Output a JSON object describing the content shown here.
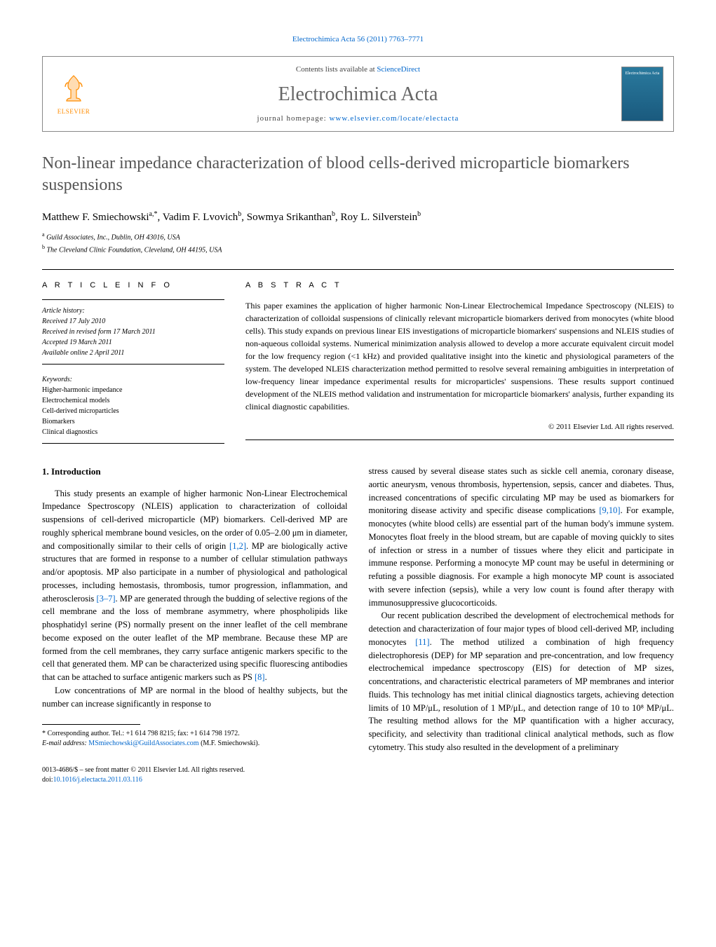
{
  "journal_ref": "Electrochimica Acta 56 (2011) 7763–7771",
  "header": {
    "contents_prefix": "Contents lists available at ",
    "contents_link": "ScienceDirect",
    "journal_name": "Electrochimica Acta",
    "homepage_prefix": "journal homepage: ",
    "homepage_url": "www.elsevier.com/locate/electacta",
    "publisher": "ELSEVIER",
    "cover_text": "Electrochimica Acta"
  },
  "title": "Non-linear impedance characterization of blood cells-derived microparticle biomarkers suspensions",
  "authors_html": "Matthew F. Smiechowski",
  "author_list": [
    {
      "name": "Matthew F. Smiechowski",
      "sup": "a,*"
    },
    {
      "name": "Vadim F. Lvovich",
      "sup": "b"
    },
    {
      "name": "Sowmya Srikanthan",
      "sup": "b"
    },
    {
      "name": "Roy L. Silverstein",
      "sup": "b"
    }
  ],
  "affiliations": [
    {
      "sup": "a",
      "text": "Guild Associates, Inc., Dublin, OH 43016, USA"
    },
    {
      "sup": "b",
      "text": "The Cleveland Clinic Foundation, Cleveland, OH 44195, USA"
    }
  ],
  "info": {
    "head": "A R T I C L E   I N F O",
    "history_label": "Article history:",
    "history": [
      "Received 17 July 2010",
      "Received in revised form 17 March 2011",
      "Accepted 19 March 2011",
      "Available online 2 April 2011"
    ],
    "keywords_label": "Keywords:",
    "keywords": [
      "Higher-harmonic impedance",
      "Electrochemical models",
      "Cell-derived microparticles",
      "Biomarkers",
      "Clinical diagnostics"
    ]
  },
  "abstract": {
    "head": "A B S T R A C T",
    "text": "This paper examines the application of higher harmonic Non-Linear Electrochemical Impedance Spectroscopy (NLEIS) to characterization of colloidal suspensions of clinically relevant microparticle biomarkers derived from monocytes (white blood cells). This study expands on previous linear EIS investigations of microparticle biomarkers' suspensions and NLEIS studies of non-aqueous colloidal systems. Numerical minimization analysis allowed to develop a more accurate equivalent circuit model for the low frequency region (<1 kHz) and provided qualitative insight into the kinetic and physiological parameters of the system. The developed NLEIS characterization method permitted to resolve several remaining ambiguities in interpretation of low-frequency linear impedance experimental results for microparticles' suspensions. These results support continued development of the NLEIS method validation and instrumentation for microparticle biomarkers' analysis, further expanding its clinical diagnostic capabilities.",
    "copyright": "© 2011 Elsevier Ltd. All rights reserved."
  },
  "body": {
    "heading": "1. Introduction",
    "left_paragraphs": [
      "This study presents an example of higher harmonic Non-Linear Electrochemical Impedance Spectroscopy (NLEIS) application to characterization of colloidal suspensions of cell-derived microparticle (MP) biomarkers. Cell-derived MP are roughly spherical membrane bound vesicles, on the order of 0.05–2.00 μm in diameter, and compositionally similar to their cells of origin [1,2]. MP are biologically active structures that are formed in response to a number of cellular stimulation pathways and/or apoptosis. MP also participate in a number of physiological and pathological processes, including hemostasis, thrombosis, tumor progression, inflammation, and atherosclerosis [3–7]. MP are generated through the budding of selective regions of the cell membrane and the loss of membrane asymmetry, where phospholipids like phosphatidyl serine (PS) normally present on the inner leaflet of the cell membrane become exposed on the outer leaflet of the MP membrane. Because these MP are formed from the cell membranes, they carry surface antigenic markers specific to the cell that generated them. MP can be characterized using specific fluorescing antibodies that can be attached to surface antigenic markers such as PS [8].",
      "Low concentrations of MP are normal in the blood of healthy subjects, but the number can increase significantly in response to"
    ],
    "right_paragraphs": [
      "stress caused by several disease states such as sickle cell anemia, coronary disease, aortic aneurysm, venous thrombosis, hypertension, sepsis, cancer and diabetes. Thus, increased concentrations of specific circulating MP may be used as biomarkers for monitoring disease activity and specific disease complications [9,10]. For example, monocytes (white blood cells) are essential part of the human body's immune system. Monocytes float freely in the blood stream, but are capable of moving quickly to sites of infection or stress in a number of tissues where they elicit and participate in immune response. Performing a monocyte MP count may be useful in determining or refuting a possible diagnosis. For example a high monocyte MP count is associated with severe infection (sepsis), while a very low count is found after therapy with immunosuppressive glucocorticoids.",
      "Our recent publication described the development of electrochemical methods for detection and characterization of four major types of blood cell-derived MP, including monocytes [11]. The method utilized a combination of high frequency dielectrophoresis (DEP) for MP separation and pre-concentration, and low frequency electrochemical impedance spectroscopy (EIS) for detection of MP sizes, concentrations, and characteristic electrical parameters of MP membranes and interior fluids. This technology has met initial clinical diagnostics targets, achieving detection limits of 10 MP/μL, resolution of 1 MP/μL, and detection range of 10 to 10⁸ MP/μL. The resulting method allows for the MP quantification with a higher accuracy, specificity, and selectivity than traditional clinical analytical methods, such as flow cytometry. This study also resulted in the development of a preliminary"
    ]
  },
  "footnote": {
    "corr": "* Corresponding author. Tel.: +1 614 798 8215; fax: +1 614 798 1972.",
    "email_label": "E-mail address: ",
    "email": "MSmiechowski@GuildAssociates.com",
    "email_suffix": " (M.F. Smiechowski)."
  },
  "footer": {
    "line1": "0013-4686/$ – see front matter © 2011 Elsevier Ltd. All rights reserved.",
    "doi_prefix": "doi:",
    "doi": "10.1016/j.electacta.2011.03.116"
  },
  "refs": {
    "r12": "[1,2]",
    "r37": "[3–7]",
    "r8": "[8]",
    "r910": "[9,10]",
    "r11": "[11]"
  }
}
